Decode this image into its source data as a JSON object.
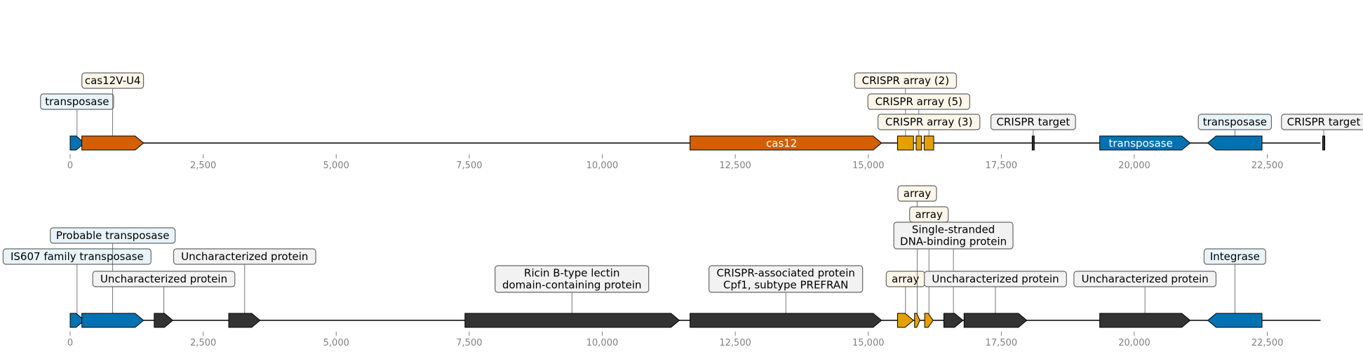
{
  "colors": {
    "orange": "#d35f00",
    "blue": "#0072b2",
    "gold": "#e69f00",
    "dark": "#333333",
    "box_blue": "#e8f4fa",
    "box_cream": "#fdf6e9",
    "box_gray": "#f2f2f2"
  },
  "tracks": [
    {
      "name": "top",
      "axis_max": 23500,
      "ticks": [
        0,
        2500,
        5000,
        7500,
        10000,
        12500,
        15000,
        17500,
        20000,
        22500
      ],
      "tick_labels": [
        "0",
        "2,500",
        "5,000",
        "7,500",
        "10,000",
        "12,500",
        "15,000",
        "17,500",
        "20,000",
        "22,500"
      ],
      "features": [
        {
          "name": "feature-transposase-small",
          "start": 0,
          "end": 270,
          "strand": 1,
          "color": "blue",
          "inner_label": ""
        },
        {
          "name": "feature-cas12v",
          "start": 220,
          "end": 1380,
          "strand": 1,
          "color": "orange",
          "inner_label": ""
        },
        {
          "name": "feature-cas12",
          "start": 11650,
          "end": 15250,
          "strand": 1,
          "color": "orange",
          "inner_label": "cas12"
        },
        {
          "name": "feature-crispr-array-2",
          "start": 15550,
          "end": 15850,
          "strand": 0,
          "color": "gold",
          "inner_label": ""
        },
        {
          "name": "feature-crispr-array-5",
          "start": 15900,
          "end": 16000,
          "strand": 0,
          "color": "gold",
          "inner_label": ""
        },
        {
          "name": "feature-crispr-array-3",
          "start": 16050,
          "end": 16230,
          "strand": 0,
          "color": "gold",
          "inner_label": ""
        },
        {
          "name": "feature-crispr-target-1",
          "start": 18070,
          "end": 18130,
          "strand": 0,
          "color": "dark",
          "inner_label": "",
          "thin": true
        },
        {
          "name": "feature-transposase-mid",
          "start": 19350,
          "end": 21050,
          "strand": 1,
          "color": "blue",
          "inner_label": "transposase"
        },
        {
          "name": "feature-transposase-rev",
          "start": 21380,
          "end": 22400,
          "strand": -1,
          "color": "blue",
          "inner_label": ""
        },
        {
          "name": "feature-crispr-target-2",
          "start": 23530,
          "end": 23590,
          "strand": 0,
          "color": "dark",
          "inner_label": "",
          "thin": true
        }
      ],
      "labels": [
        {
          "name": "label-transposase",
          "text": [
            "transposase"
          ],
          "at": 130,
          "row": 1,
          "bg": "box_blue"
        },
        {
          "name": "label-cas12v-u4",
          "text": [
            "cas12V-U4"
          ],
          "at": 800,
          "row": 2,
          "bg": "box_cream"
        },
        {
          "name": "label-crispr-array-2",
          "text": [
            "CRISPR array (2)"
          ],
          "at": 15700,
          "row": 2,
          "bg": "box_cream"
        },
        {
          "name": "label-crispr-array-5",
          "text": [
            "CRISPR array (5)"
          ],
          "at": 15950,
          "row": 1,
          "bg": "box_cream"
        },
        {
          "name": "label-crispr-array-3",
          "text": [
            "CRISPR array (3)"
          ],
          "at": 16140,
          "row": 0,
          "bg": "box_cream"
        },
        {
          "name": "label-crispr-target-1",
          "text": [
            "CRISPR target"
          ],
          "at": 18100,
          "row": 0,
          "bg": "box_gray"
        },
        {
          "name": "label-transposase-2",
          "text": [
            "transposase"
          ],
          "at": 21890,
          "row": 0,
          "bg": "box_blue"
        },
        {
          "name": "label-crispr-target-2",
          "text": [
            "CRISPR target"
          ],
          "at": 23560,
          "row": 0,
          "bg": "box_gray"
        }
      ]
    },
    {
      "name": "bottom",
      "axis_max": 23500,
      "ticks": [
        0,
        2500,
        5000,
        7500,
        10000,
        12500,
        15000,
        17500,
        20000,
        22500
      ],
      "tick_labels": [
        "0",
        "2,500",
        "5,000",
        "7,500",
        "10,000",
        "12,500",
        "15,000",
        "17,500",
        "20,000",
        "22,500"
      ],
      "features": [
        {
          "name": "feature-is607-transposase",
          "start": 0,
          "end": 270,
          "strand": 1,
          "color": "blue",
          "inner_label": ""
        },
        {
          "name": "feature-probable-transposase",
          "start": 220,
          "end": 1380,
          "strand": 1,
          "color": "blue",
          "inner_label": ""
        },
        {
          "name": "feature-uncharacterized-1",
          "start": 1580,
          "end": 1930,
          "strand": 1,
          "color": "dark",
          "inner_label": ""
        },
        {
          "name": "feature-uncharacterized-2",
          "start": 2980,
          "end": 3570,
          "strand": 1,
          "color": "dark",
          "inner_label": ""
        },
        {
          "name": "feature-ricin-lectin",
          "start": 7420,
          "end": 11450,
          "strand": 1,
          "color": "dark",
          "inner_label": ""
        },
        {
          "name": "feature-cpf1",
          "start": 11650,
          "end": 15250,
          "strand": 1,
          "color": "dark",
          "inner_label": ""
        },
        {
          "name": "feature-array-1",
          "start": 15550,
          "end": 15850,
          "strand": 1,
          "color": "gold",
          "inner_label": ""
        },
        {
          "name": "feature-array-2",
          "start": 15870,
          "end": 15970,
          "strand": 1,
          "color": "gold",
          "inner_label": ""
        },
        {
          "name": "feature-array-3",
          "start": 16060,
          "end": 16220,
          "strand": 1,
          "color": "gold",
          "inner_label": ""
        },
        {
          "name": "feature-ssb",
          "start": 16420,
          "end": 16780,
          "strand": 1,
          "color": "dark",
          "inner_label": ""
        },
        {
          "name": "feature-uncharacterized-3",
          "start": 16800,
          "end": 17980,
          "strand": 1,
          "color": "dark",
          "inner_label": ""
        },
        {
          "name": "feature-uncharacterized-4",
          "start": 19350,
          "end": 21050,
          "strand": 1,
          "color": "dark",
          "inner_label": ""
        },
        {
          "name": "feature-integrase",
          "start": 21380,
          "end": 22400,
          "strand": -1,
          "color": "blue",
          "inner_label": ""
        }
      ],
      "labels": [
        {
          "name": "label-is607-transposase",
          "text": [
            "IS607 family transposase"
          ],
          "at": 130,
          "row": 2,
          "bg": "box_blue"
        },
        {
          "name": "label-probable-transposase",
          "text": [
            "Probable transposase"
          ],
          "at": 800,
          "row": 3,
          "bg": "box_blue"
        },
        {
          "name": "label-uncharacterized-1",
          "text": [
            "Uncharacterized protein"
          ],
          "at": 1760,
          "row": 1,
          "bg": "box_gray"
        },
        {
          "name": "label-uncharacterized-2",
          "text": [
            "Uncharacterized protein"
          ],
          "at": 3280,
          "row": 2,
          "bg": "box_gray"
        },
        {
          "name": "label-ricin-lectin",
          "text": [
            "Ricin B-type lectin",
            "domain-containing protein"
          ],
          "at": 9430,
          "row": 1,
          "bg": "box_gray"
        },
        {
          "name": "label-cpf1",
          "text": [
            "CRISPR-associated protein",
            "Cpf1, subtype PREFRAN"
          ],
          "at": 13450,
          "row": 1,
          "bg": "box_gray"
        },
        {
          "name": "label-array-1",
          "text": [
            "array"
          ],
          "at": 15700,
          "row": 1,
          "bg": "box_cream"
        },
        {
          "name": "label-array-2",
          "text": [
            "array"
          ],
          "at": 15920,
          "row": 5,
          "bg": "box_cream"
        },
        {
          "name": "label-array-3",
          "text": [
            "array"
          ],
          "at": 16140,
          "row": 4,
          "bg": "box_cream"
        },
        {
          "name": "label-ssb",
          "text": [
            "Single-stranded",
            "DNA-binding protein"
          ],
          "at": 16600,
          "row": 3,
          "bg": "box_gray"
        },
        {
          "name": "label-uncharacterized-3",
          "text": [
            "Uncharacterized protein"
          ],
          "at": 17390,
          "row": 1,
          "bg": "box_gray"
        },
        {
          "name": "label-uncharacterized-4",
          "text": [
            "Uncharacterized protein"
          ],
          "at": 20200,
          "row": 1,
          "bg": "box_gray"
        },
        {
          "name": "label-integrase",
          "text": [
            "Integrase"
          ],
          "at": 21890,
          "row": 2,
          "bg": "box_blue"
        }
      ]
    }
  ]
}
